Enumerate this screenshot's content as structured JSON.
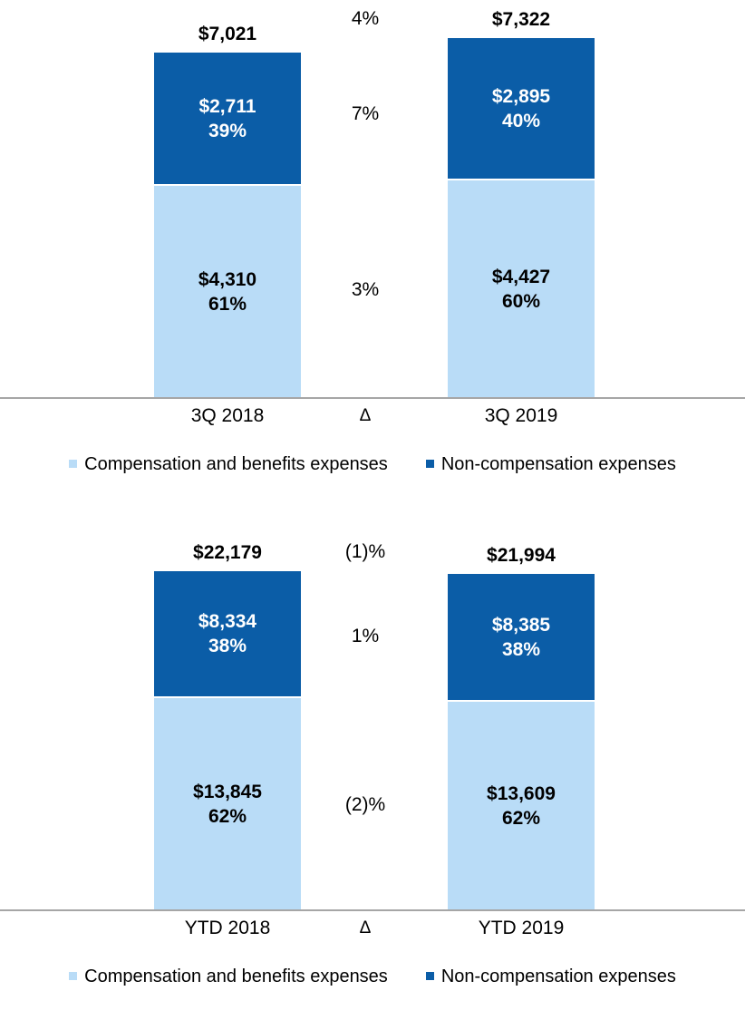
{
  "colors": {
    "comp": "#b9dcf7",
    "noncomp": "#0b5da7",
    "axis_line": "#a6a6a6",
    "segment_text_on_dark": "#ffffff",
    "segment_text_on_light": "#000000"
  },
  "legend": {
    "comp_label": "Compensation and benefits expenses",
    "noncomp_label": "Non-compensation expenses"
  },
  "chart_data": [
    {
      "type": "bar",
      "stacked": true,
      "title": "",
      "xlabel": "",
      "ylabel": "",
      "grid": false,
      "legend_position": "bottom",
      "categories": [
        "3Q 2018",
        "3Q 2019"
      ],
      "delta_symbol": "Δ",
      "series": [
        {
          "name": "Compensation and benefits expenses",
          "color": "#b9dcf7",
          "values": [
            4310,
            4427
          ],
          "value_labels": [
            "$4,310",
            "$4,427"
          ],
          "pct_labels": [
            "61%",
            "60%"
          ]
        },
        {
          "name": "Non-compensation expenses",
          "color": "#0b5da7",
          "values": [
            2711,
            2895
          ],
          "value_labels": [
            "$2,711",
            "$2,895"
          ],
          "pct_labels": [
            "39%",
            "40%"
          ]
        }
      ],
      "totals": [
        7021,
        7322
      ],
      "totals_display": [
        "$7,021",
        "$7,322"
      ],
      "deltas": {
        "total": "4%",
        "noncomp": "7%",
        "comp": "3%"
      }
    },
    {
      "type": "bar",
      "stacked": true,
      "title": "",
      "xlabel": "",
      "ylabel": "",
      "grid": false,
      "legend_position": "bottom",
      "categories": [
        "YTD 2018",
        "YTD 2019"
      ],
      "delta_symbol": "Δ",
      "series": [
        {
          "name": "Compensation and benefits expenses",
          "color": "#b9dcf7",
          "values": [
            13845,
            13609
          ],
          "value_labels": [
            "$13,845",
            "$13,609"
          ],
          "pct_labels": [
            "62%",
            "62%"
          ]
        },
        {
          "name": "Non-compensation expenses",
          "color": "#0b5da7",
          "values": [
            8334,
            8385
          ],
          "value_labels": [
            "$8,334",
            "$8,385"
          ],
          "pct_labels": [
            "38%",
            "38%"
          ]
        }
      ],
      "totals": [
        22179,
        21994
      ],
      "totals_display": [
        "$22,179",
        "$21,994"
      ],
      "deltas": {
        "total": "(1)%",
        "noncomp": "1%",
        "comp": "(2)%"
      }
    }
  ]
}
